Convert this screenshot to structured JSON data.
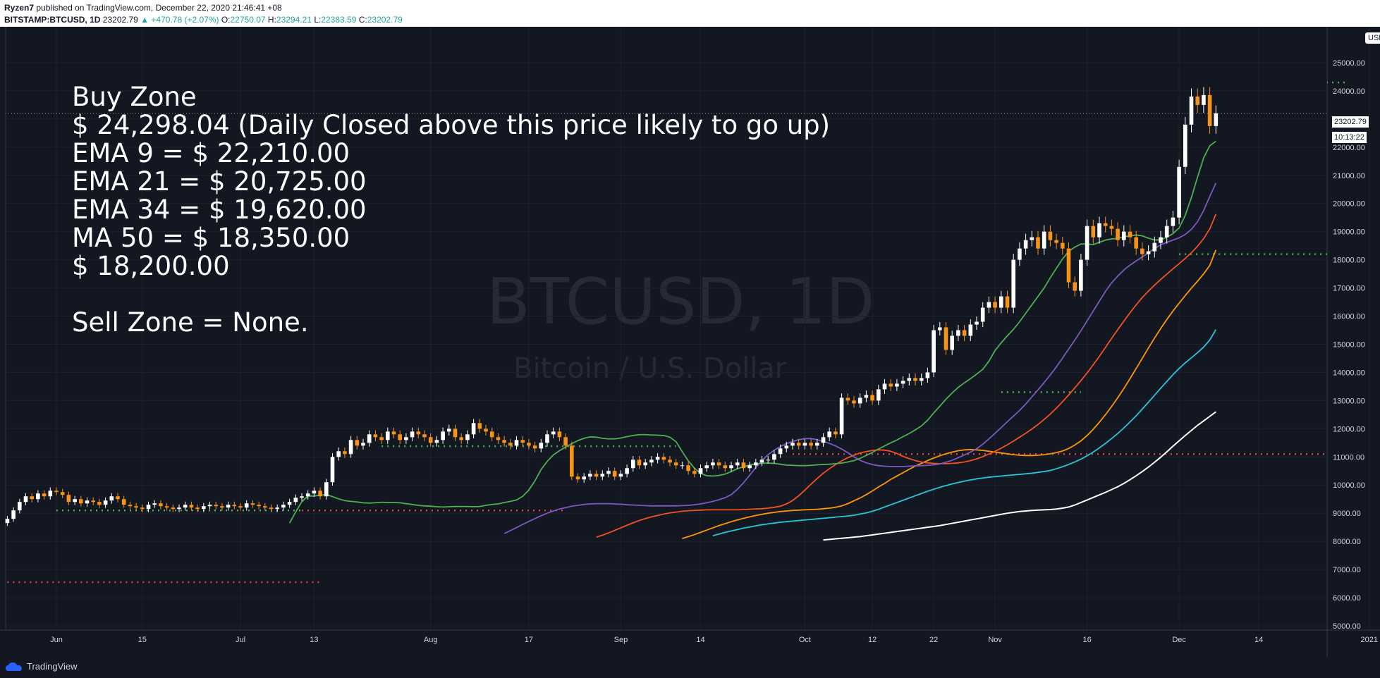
{
  "header": {
    "author": "Ryzen7",
    "published": "published on TradingView.com, December 22, 2020 21:46:41 +08",
    "symbol": "BITSTAMP:BTCUSD, 1D",
    "last": "23202.79",
    "change": "▲ +470.78 (+2.07%)",
    "o_label": "O:",
    "o": "22750.07",
    "h_label": "H:",
    "h": "23294.21",
    "l_label": "L:",
    "l": "22383.59",
    "c_label": "C:",
    "c": "23202.79"
  },
  "notes": {
    "line1": "Buy Zone",
    "line2": "$ 24,298.04 (Daily Closed above this price likely to go up)",
    "line3": "EMA 9 = $ 22,210.00",
    "line4": "EMA 21 = $ 20,725.00",
    "line5": "EMA 34 = $ 19,620.00",
    "line6": "MA 50 = $ 18,350.00",
    "line7": "$ 18,200.00",
    "line8": "Sell Zone = None."
  },
  "watermark": {
    "symbol": "BTCUSD, 1D",
    "description": "Bitcoin / U.S. Dollar"
  },
  "price_axis": {
    "currency": "USD",
    "current_price": "23202.79",
    "countdown": "10:13:22"
  },
  "footer": {
    "brand": "TradingView"
  },
  "colors": {
    "background": "#131722",
    "grid": "#1e222d",
    "up": "#ffffff",
    "down": "#f7931a",
    "ema9": "#4caf50",
    "ema21": "#7e57c2",
    "ema34": "#f4511e",
    "ma50": "#ff9800",
    "ma100": "#26c6da",
    "ma200": "#ffffff",
    "green_dots": "#4caf50",
    "red_dots": "#e53935"
  },
  "chart_data": {
    "type": "candlestick",
    "title": "BTCUSD, 1D",
    "subtitle": "Bitcoin / U.S. Dollar",
    "ylim": [
      5000,
      26000
    ],
    "y_ticks": [
      5000,
      6000,
      7000,
      8000,
      9000,
      10000,
      11000,
      12000,
      13000,
      14000,
      15000,
      16000,
      17000,
      18000,
      19000,
      20000,
      21000,
      22000,
      23000,
      24000,
      25000
    ],
    "y_tick_labels": [
      "5000.00",
      "6000.00",
      "7000.00",
      "8000.00",
      "9000.00",
      "10000.00",
      "11000.00",
      "12000.00",
      "13000.00",
      "14000.00",
      "15000.00",
      "16000.00",
      "17000.00",
      "18000.00",
      "19000.00",
      "20000.00",
      "21000.00",
      "22000.00",
      "23000.00",
      "24000.00",
      "25000.00"
    ],
    "x_tick_labels": [
      {
        "day": 0,
        "label": "Jun"
      },
      {
        "day": 14,
        "label": "15"
      },
      {
        "day": 30,
        "label": "Jul"
      },
      {
        "day": 42,
        "label": "13"
      },
      {
        "day": 61,
        "label": "Aug"
      },
      {
        "day": 77,
        "label": "17"
      },
      {
        "day": 92,
        "label": "Sep"
      },
      {
        "day": 105,
        "label": "14"
      },
      {
        "day": 122,
        "label": "Oct"
      },
      {
        "day": 133,
        "label": "12"
      },
      {
        "day": 143,
        "label": "22"
      },
      {
        "day": 153,
        "label": "Nov"
      },
      {
        "day": 168,
        "label": "16"
      },
      {
        "day": 183,
        "label": "Dec"
      },
      {
        "day": 196,
        "label": "14"
      },
      {
        "day": 214,
        "label": "2021"
      }
    ],
    "days_before_axis_start": 8,
    "closes": [
      8800,
      9100,
      9400,
      9600,
      9500,
      9700,
      9600,
      9800,
      9750,
      9650,
      9400,
      9500,
      9350,
      9450,
      9400,
      9300,
      9450,
      9600,
      9500,
      9300,
      9250,
      9200,
      9150,
      9300,
      9350,
      9250,
      9200,
      9150,
      9200,
      9300,
      9200,
      9150,
      9250,
      9300,
      9250,
      9200,
      9300,
      9250,
      9200,
      9350,
      9300,
      9250,
      9200,
      9150,
      9200,
      9300,
      9400,
      9550,
      9600,
      9700,
      9800,
      9600,
      10100,
      11000,
      11200,
      11100,
      11600,
      11400,
      11500,
      11800,
      11700,
      11600,
      11900,
      11800,
      11600,
      11700,
      11900,
      11800,
      11700,
      11500,
      11600,
      11900,
      12000,
      11700,
      11600,
      11800,
      12200,
      12000,
      11900,
      11700,
      11600,
      11500,
      11400,
      11600,
      11500,
      11400,
      11300,
      11500,
      11800,
      11900,
      11700,
      11400,
      10300,
      10200,
      10300,
      10400,
      10300,
      10400,
      10500,
      10300,
      10400,
      10600,
      10900,
      10700,
      10800,
      10900,
      11000,
      10900,
      10800,
      10700,
      10700,
      10500,
      10400,
      10600,
      10700,
      10800,
      10700,
      10600,
      10700,
      10800,
      10600,
      10700,
      10800,
      10900,
      10900,
      11100,
      11300,
      11400,
      11500,
      11400,
      11500,
      11400,
      11500,
      11700,
      11900,
      11800,
      13100,
      13000,
      12900,
      13100,
      13200,
      13000,
      13400,
      13600,
      13500,
      13600,
      13700,
      13800,
      13700,
      13800,
      14000,
      15500,
      15600,
      14800,
      15300,
      15500,
      15300,
      15700,
      15800,
      16300,
      16500,
      16300,
      16700,
      16300,
      18000,
      18400,
      18700,
      18800,
      18400,
      19000,
      18700,
      18600,
      18400,
      17200,
      16900,
      18000,
      19200,
      18800,
      19300,
      19200,
      19100,
      18700,
      19000,
      18800,
      18400,
      18200,
      18300,
      18600,
      18800,
      19200,
      19500,
      21300,
      22800,
      23800,
      23500,
      23850,
      22750,
      23203
    ],
    "ema9": [
      8650,
      9040,
      9410,
      9610,
      9610,
      9640,
      9660,
      9590,
      9510,
      9450,
      9420,
      9400,
      9370,
      9360,
      9370,
      9390,
      9380,
      9380,
      9370,
      9340,
      9310,
      9280,
      9260,
      9250,
      9230,
      9220,
      9230,
      9240,
      9240,
      9240,
      9230,
      9240,
      9280,
      9310,
      9330,
      9380,
      9420,
      9470,
      9600,
      9820,
      10150,
      10550,
      10840,
      11070,
      11220,
      11350,
      11470,
      11580,
      11660,
      11710,
      11700,
      11660,
      11640,
      11640,
      11670,
      11720,
      11760,
      11790,
      11790,
      11780,
      11770,
      11760,
      11700,
      11540,
      11190,
      10860,
      10600,
      10420,
      10330,
      10320,
      10340,
      10390,
      10480,
      10580,
      10650,
      10710,
      10750,
      10770,
      10780,
      10770,
      10740,
      10710,
      10700,
      10690,
      10690,
      10700,
      10720,
      10730,
      10740,
      10760,
      10780,
      10820,
      10870,
      10950,
      11050,
      11160,
      11280,
      11390,
      11500,
      11600,
      11720,
      11830,
      11960,
      12100,
      12300,
      12560,
      12800,
      13050,
      13270,
      13470,
      13630,
      13780,
      13940,
      14110,
      14400,
      14780,
      15050,
      15300,
      15530,
      15800,
      16100,
      16400,
      16700,
      17000,
      17360,
      17700,
      18030,
      18300,
      18450,
      18560,
      18560,
      18540,
      18620,
      18700,
      18740,
      18760,
      18820,
      18850,
      18880,
      18850,
      18770,
      18700,
      18710,
      18800,
      18930,
      19130,
      19580,
      20210,
      20930,
      21620,
      22050,
      22210
    ],
    "ema21": [
      8280,
      8380,
      8490,
      8600,
      8710,
      8810,
      8910,
      9000,
      9080,
      9150,
      9200,
      9250,
      9280,
      9310,
      9330,
      9340,
      9340,
      9340,
      9330,
      9320,
      9300,
      9290,
      9280,
      9270,
      9260,
      9260,
      9260,
      9260,
      9260,
      9270,
      9280,
      9300,
      9330,
      9370,
      9420,
      9480,
      9550,
      9660,
      9850,
      10080,
      10350,
      10620,
      10870,
      11080,
      11240,
      11370,
      11470,
      11550,
      11610,
      11650,
      11650,
      11610,
      11550,
      11480,
      11390,
      11280,
      11150,
      11000,
      10880,
      10790,
      10730,
      10690,
      10670,
      10660,
      10660,
      10660,
      10670,
      10680,
      10690,
      10700,
      10720,
      10750,
      10810,
      10880,
      10970,
      11070,
      11170,
      11290,
      11450,
      11640,
      11840,
      12040,
      12250,
      12450,
      12650,
      12880,
      13130,
      13380,
      13640,
      13910,
      14200,
      14510,
      14830,
      15150,
      15480,
      15830,
      16180,
      16530,
      16880,
      17180,
      17420,
      17640,
      17810,
      17960,
      18100,
      18250,
      18400,
      18530,
      18620,
      18700,
      18780,
      18900,
      19080,
      19350,
      19750,
      20250,
      20725
    ],
    "ema34": [
      8150,
      8220,
      8300,
      8390,
      8480,
      8570,
      8660,
      8740,
      8810,
      8870,
      8920,
      8970,
      9010,
      9040,
      9070,
      9090,
      9100,
      9110,
      9120,
      9120,
      9120,
      9120,
      9120,
      9120,
      9130,
      9140,
      9150,
      9160,
      9180,
      9210,
      9250,
      9330,
      9450,
      9620,
      9820,
      10030,
      10230,
      10420,
      10580,
      10730,
      10860,
      10970,
      11060,
      11140,
      11190,
      11230,
      11250,
      11240,
      11200,
      11120,
      11020,
      10940,
      10870,
      10820,
      10790,
      10770,
      10760,
      10760,
      10770,
      10790,
      10820,
      10870,
      10930,
      11010,
      11100,
      11200,
      11310,
      11430,
      11560,
      11700,
      11840,
      11990,
      12150,
      12330,
      12520,
      12730,
      12960,
      13200,
      13450,
      13710,
      13980,
      14270,
      14570,
      14890,
      15210,
      15520,
      15820,
      16120,
      16400,
      16660,
      16890,
      17100,
      17300,
      17490,
      17680,
      17860,
      18050,
      18250,
      18480,
      18750,
      19100,
      19620
    ],
    "ma50": [
      8100,
      8170,
      8240,
      8320,
      8400,
      8480,
      8560,
      8630,
      8700,
      8760,
      8820,
      8870,
      8920,
      8960,
      9000,
      9030,
      9060,
      9080,
      9100,
      9110,
      9120,
      9130,
      9140,
      9160,
      9180,
      9210,
      9260,
      9340,
      9440,
      9540,
      9660,
      9790,
      9930,
      10060,
      10200,
      10320,
      10440,
      10560,
      10670,
      10770,
      10870,
      10960,
      11040,
      11110,
      11170,
      11220,
      11250,
      11260,
      11250,
      11230,
      11200,
      11170,
      11140,
      11110,
      11080,
      11060,
      11050,
      11050,
      11060,
      11080,
      11110,
      11150,
      11210,
      11300,
      11420,
      11570,
      11760,
      11980,
      12230,
      12500,
      12790,
      13100,
      13430,
      13780,
      14140,
      14500,
      14870,
      15220,
      15560,
      15880,
      16180,
      16460,
      16730,
      16990,
      17240,
      17500,
      17800,
      18350
    ],
    "ma100": [
      8200,
      8260,
      8320,
      8370,
      8420,
      8470,
      8510,
      8550,
      8590,
      8620,
      8650,
      8680,
      8700,
      8720,
      8740,
      8760,
      8780,
      8800,
      8820,
      8840,
      8860,
      8880,
      8900,
      8930,
      8970,
      9010,
      9070,
      9140,
      9220,
      9300,
      9380,
      9460,
      9540,
      9620,
      9700,
      9780,
      9850,
      9920,
      9980,
      10040,
      10090,
      10140,
      10180,
      10220,
      10250,
      10280,
      10300,
      10320,
      10340,
      10360,
      10380,
      10400,
      10420,
      10450,
      10480,
      10520,
      10580,
      10650,
      10730,
      10820,
      10920,
      11040,
      11170,
      11320,
      11480,
      11650,
      11830,
      12030,
      12240,
      12460,
      12700,
      12940,
      13190,
      13440,
      13680,
      13920,
      14140,
      14340,
      14520,
      14700,
      14900,
      15150,
      15520
    ],
    "ma200": [
      8050,
      8070,
      8090,
      8110,
      8130,
      8150,
      8170,
      8200,
      8230,
      8260,
      8290,
      8320,
      8350,
      8380,
      8410,
      8440,
      8470,
      8500,
      8530,
      8560,
      8600,
      8640,
      8680,
      8720,
      8760,
      8800,
      8840,
      8880,
      8920,
      8960,
      9000,
      9030,
      9060,
      9080,
      9100,
      9110,
      9120,
      9130,
      9150,
      9180,
      9220,
      9290,
      9380,
      9470,
      9560,
      9650,
      9740,
      9840,
      9940,
      10060,
      10190,
      10330,
      10480,
      10640,
      10810,
      10990,
      11180,
      11380,
      11570,
      11760,
      11940,
      12120,
      12280,
      12440,
      12600
    ],
    "horizontal_levels": [
      {
        "price": 24298.04,
        "color": "green",
        "from_day": 210,
        "to_day": 213
      },
      {
        "price": 18200,
        "color": "green",
        "from_day": 183,
        "to_day": 209
      },
      {
        "price": 13300,
        "color": "green",
        "from_day": 154,
        "to_day": 167
      },
      {
        "price": 11380,
        "color": "green",
        "from_day": 53,
        "to_day": 101
      },
      {
        "price": 11100,
        "color": "red",
        "from_day": 120,
        "to_day": 214
      },
      {
        "price": 9100,
        "color": "green",
        "from_day": 0,
        "to_day": 40
      },
      {
        "price": 9100,
        "color": "red",
        "from_day": 40,
        "to_day": 83
      },
      {
        "price": 6550,
        "color": "red",
        "from_day": -8,
        "to_day": 43
      }
    ]
  }
}
